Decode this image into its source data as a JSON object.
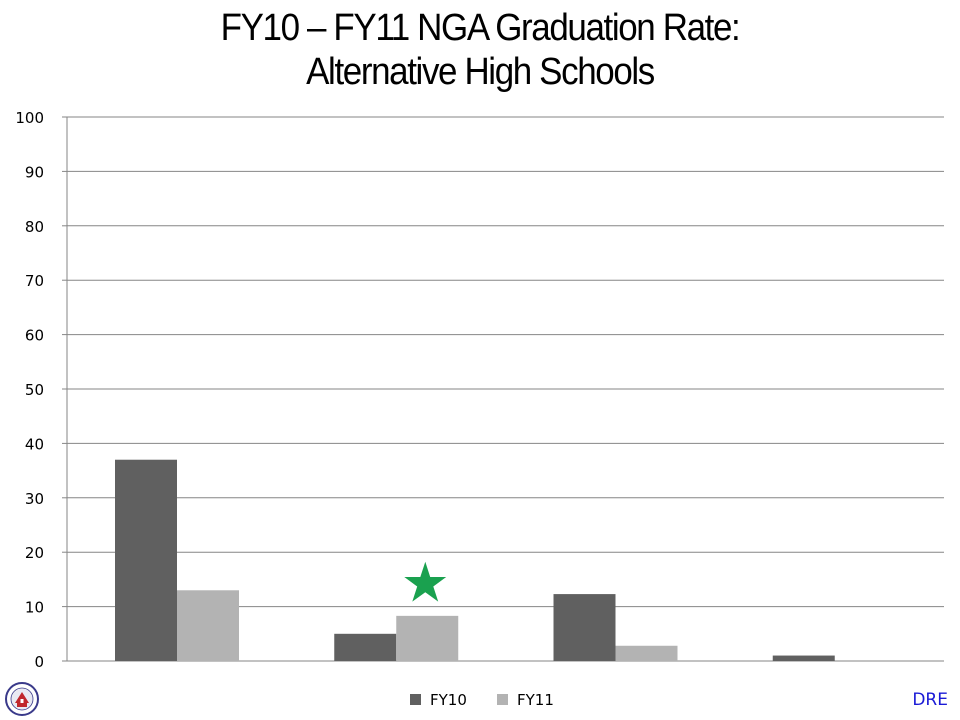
{
  "title_line1": "FY10 – FY11 NGA Graduation Rate:",
  "title_line2": "Alternative High Schools",
  "footer_tag": "DRE",
  "colors": {
    "fy10": "#606060",
    "fy11": "#b3b3b3",
    "star": "#1aa14f",
    "grid": "#868686",
    "footer": "#1a1ad6"
  },
  "chart_data": {
    "type": "bar",
    "categories": [
      "",
      "",
      "",
      ""
    ],
    "series": [
      {
        "name": "FY10",
        "values": [
          37,
          5,
          12.3,
          1
        ]
      },
      {
        "name": "FY11",
        "values": [
          13,
          8.3,
          2.8,
          0
        ]
      }
    ],
    "ylim": [
      0,
      100
    ],
    "yticks": [
      0,
      10,
      20,
      30,
      40,
      50,
      60,
      70,
      80,
      90,
      100
    ],
    "grid": true,
    "legend_position": "bottom-center",
    "annotations": [
      {
        "type": "star-icon",
        "category_index": 1,
        "series": "FY11"
      }
    ]
  }
}
